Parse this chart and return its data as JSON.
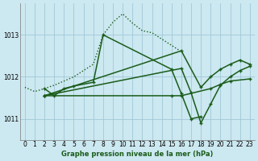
{
  "title": "Graphe pression niveau de la mer (hPa)",
  "background_color": "#cce8f0",
  "line_color": "#1a5c1a",
  "grid_color": "#a0c8d8",
  "xlim": [
    -0.5,
    23.5
  ],
  "ylim": [
    1010.5,
    1013.75
  ],
  "yticks": [
    1011,
    1012,
    1013
  ],
  "xticks": [
    0,
    1,
    2,
    3,
    4,
    5,
    6,
    7,
    8,
    9,
    10,
    11,
    12,
    13,
    14,
    15,
    16,
    17,
    18,
    19,
    20,
    21,
    22,
    23
  ],
  "dotted_series": {
    "x": [
      0,
      1,
      2,
      3,
      4,
      5,
      6,
      7,
      8,
      9,
      10,
      11,
      12,
      13,
      16
    ],
    "y": [
      1011.75,
      1011.65,
      1011.72,
      1011.8,
      1011.9,
      1012.0,
      1012.15,
      1012.3,
      1013.0,
      1013.3,
      1013.5,
      1013.28,
      1013.1,
      1013.05,
      1012.6
    ]
  },
  "solid1": {
    "x": [
      2,
      3,
      4,
      5,
      7,
      8,
      15,
      16,
      17,
      18
    ],
    "y": [
      1011.72,
      1011.55,
      1011.72,
      1011.78,
      1011.87,
      1013.0,
      1012.18,
      1011.6,
      1011.0,
      1011.05
    ]
  },
  "solid2": {
    "x": [
      2,
      15,
      16,
      19,
      20,
      21,
      23
    ],
    "y": [
      1011.55,
      1011.55,
      1011.55,
      1011.72,
      1011.82,
      1011.9,
      1011.95
    ]
  },
  "solid3": {
    "x": [
      2,
      16,
      17,
      18,
      19,
      20,
      21,
      22,
      23
    ],
    "y": [
      1011.55,
      1012.2,
      1011.62,
      1010.9,
      1011.35,
      1011.8,
      1012.0,
      1012.15,
      1012.25
    ]
  },
  "solid4": {
    "x": [
      2,
      16,
      18,
      19,
      20,
      21,
      22,
      23
    ],
    "y": [
      1011.55,
      1012.62,
      1011.75,
      1012.0,
      1012.18,
      1012.3,
      1012.4,
      1012.3
    ]
  }
}
